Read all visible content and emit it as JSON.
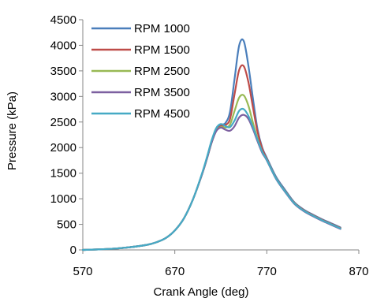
{
  "chart_data": {
    "type": "line",
    "title": "",
    "xlabel": "Crank Angle (deg)",
    "ylabel": "Pressure (kPa)",
    "xlim": [
      570,
      870
    ],
    "ylim": [
      0,
      4500
    ],
    "xticks": [
      570,
      670,
      770,
      870
    ],
    "yticks": [
      0,
      500,
      1000,
      1500,
      2000,
      2500,
      3000,
      3500,
      4000,
      4500
    ],
    "grid": false,
    "legend_position": "top-left",
    "x": [
      570,
      600,
      620,
      640,
      650,
      660,
      670,
      680,
      690,
      700,
      705,
      710,
      715,
      720,
      725,
      730,
      735,
      740,
      745,
      750,
      755,
      760,
      765,
      770,
      780,
      790,
      800,
      810,
      820,
      830,
      840,
      850
    ],
    "series": [
      {
        "name": "RPM 1000",
        "color": "#4a7ebb",
        "values": [
          0,
          20,
          50,
          100,
          150,
          230,
          380,
          620,
          1000,
          1500,
          1790,
          2100,
          2330,
          2440,
          2480,
          2700,
          3350,
          4000,
          4080,
          3600,
          2950,
          2350,
          2000,
          1800,
          1430,
          1170,
          930,
          790,
          690,
          600,
          520,
          440
        ]
      },
      {
        "name": "RPM 1500",
        "color": "#be4b48",
        "values": [
          0,
          20,
          50,
          100,
          150,
          230,
          380,
          620,
          1000,
          1500,
          1790,
          2100,
          2330,
          2420,
          2440,
          2560,
          3050,
          3520,
          3590,
          3280,
          2780,
          2300,
          1980,
          1780,
          1410,
          1150,
          920,
          780,
          680,
          590,
          510,
          430
        ]
      },
      {
        "name": "RPM 2500",
        "color": "#98b954",
        "values": [
          0,
          20,
          50,
          100,
          150,
          230,
          380,
          620,
          1000,
          1500,
          1790,
          2100,
          2330,
          2400,
          2390,
          2450,
          2720,
          2980,
          3020,
          2820,
          2480,
          2170,
          1920,
          1760,
          1400,
          1140,
          910,
          770,
          670,
          580,
          500,
          420
        ]
      },
      {
        "name": "RPM 3500",
        "color": "#7d60a0",
        "values": [
          0,
          20,
          50,
          100,
          150,
          230,
          380,
          620,
          1000,
          1500,
          1790,
          2100,
          2320,
          2390,
          2350,
          2330,
          2420,
          2590,
          2640,
          2560,
          2360,
          2120,
          1900,
          1750,
          1390,
          1130,
          900,
          760,
          660,
          570,
          490,
          410
        ]
      },
      {
        "name": "RPM 4500",
        "color": "#46aac5",
        "values": [
          0,
          20,
          50,
          100,
          150,
          230,
          380,
          620,
          1000,
          1520,
          1820,
          2140,
          2380,
          2460,
          2420,
          2400,
          2530,
          2720,
          2750,
          2620,
          2400,
          2150,
          1920,
          1760,
          1400,
          1140,
          910,
          770,
          670,
          580,
          500,
          420
        ]
      }
    ]
  }
}
